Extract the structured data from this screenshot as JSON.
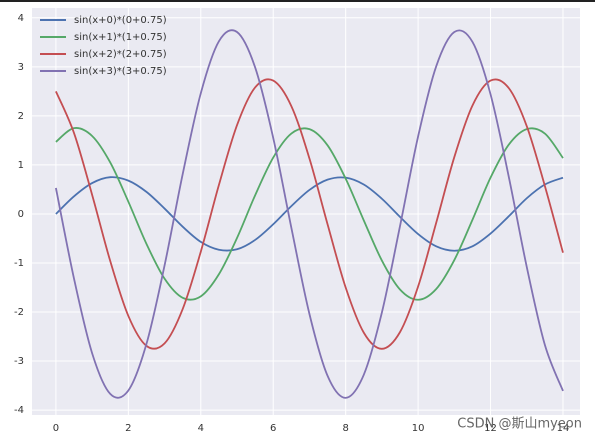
{
  "chart_data": {
    "type": "line",
    "x": [
      0,
      0.5,
      1,
      1.5,
      2,
      2.5,
      3,
      3.5,
      4,
      4.5,
      5,
      5.5,
      6,
      6.5,
      7,
      7.5,
      8,
      8.5,
      9,
      9.5,
      10,
      10.5,
      11,
      11.5,
      12,
      12.5,
      13,
      13.5,
      14
    ],
    "series": [
      {
        "name": "sin(x+0)*(0+0.75)",
        "color": "#4c72b0",
        "values": [
          0,
          0.36,
          0.63,
          0.75,
          0.68,
          0.45,
          0.11,
          -0.26,
          -0.57,
          -0.73,
          -0.72,
          -0.53,
          -0.21,
          0.16,
          0.49,
          0.7,
          0.74,
          0.6,
          0.31,
          -0.06,
          -0.41,
          -0.66,
          -0.75,
          -0.66,
          -0.4,
          -0.05,
          0.32,
          0.6,
          0.74
        ]
      },
      {
        "name": "sin(x+1)*(1+0.75)",
        "color": "#55a868",
        "values": [
          1.47,
          1.75,
          1.59,
          1.05,
          0.25,
          -0.61,
          -1.32,
          -1.71,
          -1.68,
          -1.23,
          -0.49,
          0.38,
          1.15,
          1.64,
          1.73,
          1.4,
          0.72,
          -0.13,
          -0.95,
          -1.54,
          -1.75,
          -1.53,
          -0.94,
          -0.12,
          0.74,
          1.41,
          1.73,
          1.64,
          1.14
        ]
      },
      {
        "name": "sin(x+2)*(2+0.75)",
        "color": "#c44e52",
        "values": [
          2.5,
          1.65,
          0.39,
          -0.96,
          -2.08,
          -2.69,
          -2.64,
          -1.94,
          -0.77,
          0.59,
          1.81,
          2.58,
          2.72,
          2.2,
          1.13,
          -0.21,
          -1.5,
          -2.42,
          -2.75,
          -2.41,
          -1.48,
          -0.18,
          1.16,
          2.21,
          2.72,
          2.57,
          1.79,
          0.57,
          -0.79
        ]
      },
      {
        "name": "sin(x+3)*(3+0.75)",
        "color": "#8172b2",
        "values": [
          0.53,
          -1.32,
          -2.84,
          -3.67,
          -3.6,
          -2.65,
          -1.05,
          0.81,
          2.46,
          3.52,
          3.71,
          2.99,
          1.55,
          -0.28,
          -2.04,
          -3.3,
          -3.75,
          -3.28,
          -2.01,
          -0.25,
          1.58,
          3.01,
          3.71,
          3.51,
          2.44,
          0.77,
          -1.08,
          -2.67,
          -3.61
        ]
      }
    ],
    "xlim": [
      -0.66,
      14.47
    ],
    "xticks": [
      0,
      2,
      4,
      6,
      8,
      10,
      12,
      14
    ],
    "ylim": [
      -4.1,
      4.2
    ],
    "yticks": [
      -4,
      -3,
      -2,
      -1,
      0,
      1,
      2,
      3,
      4
    ],
    "grid": true,
    "legend": "upper-left",
    "watermark": "CSDN @斯山myeon"
  }
}
